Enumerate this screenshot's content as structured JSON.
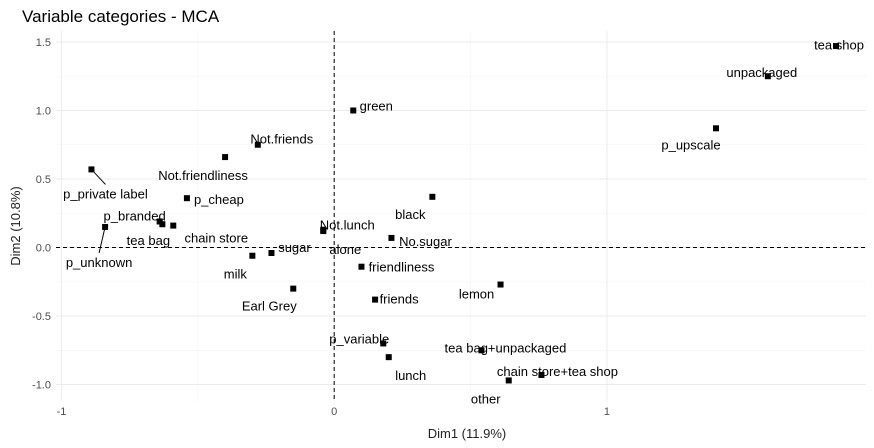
{
  "chart_data": {
    "type": "scatter",
    "title": "Variable categories - MCA",
    "xlabel": "Dim1 (11.9%)",
    "ylabel": "Dim2 (10.8%)",
    "xlim": [
      -1.02,
      1.95
    ],
    "ylim": [
      -1.12,
      1.58
    ],
    "xticks": [
      -1,
      0,
      1
    ],
    "yticks": [
      -1.0,
      -0.5,
      0.0,
      0.5,
      1.0,
      1.5
    ],
    "ytick_labels": [
      "-1.0",
      "-0.5",
      "0.0",
      "0.5",
      "1.0",
      "1.5"
    ],
    "xtick_labels": [
      "-1",
      "0",
      "1"
    ],
    "grid": true,
    "reference_lines": {
      "x": 0,
      "y": 0,
      "style": "dashed"
    },
    "points": [
      {
        "label": "tea shop",
        "x": 1.84,
        "y": 1.47
      },
      {
        "label": "unpackaged",
        "x": 1.59,
        "y": 1.25
      },
      {
        "label": "p_upscale",
        "x": 1.4,
        "y": 0.87
      },
      {
        "label": "green",
        "x": 0.07,
        "y": 1.0
      },
      {
        "label": "Not.friends",
        "x": -0.28,
        "y": 0.75
      },
      {
        "label": "Not.friendliness",
        "x": -0.4,
        "y": 0.66
      },
      {
        "label": "p_private label",
        "x": -0.89,
        "y": 0.57
      },
      {
        "label": "p_cheap",
        "x": -0.54,
        "y": 0.36
      },
      {
        "label": "black",
        "x": 0.36,
        "y": 0.37
      },
      {
        "label": "p_branded",
        "x": -0.64,
        "y": 0.19
      },
      {
        "label": "chain store",
        "x": -0.59,
        "y": 0.16
      },
      {
        "label": "tea bag",
        "x": -0.63,
        "y": 0.17
      },
      {
        "label": "p_unknown",
        "x": -0.84,
        "y": 0.15
      },
      {
        "label": "Not.lunch",
        "x": -0.04,
        "y": 0.13
      },
      {
        "label": "alone",
        "x": -0.04,
        "y": 0.12
      },
      {
        "label": "No.sugar",
        "x": 0.21,
        "y": 0.07
      },
      {
        "label": "sugar",
        "x": -0.23,
        "y": -0.04
      },
      {
        "label": "milk",
        "x": -0.3,
        "y": -0.06
      },
      {
        "label": "friendliness",
        "x": 0.1,
        "y": -0.14
      },
      {
        "label": "Earl Grey",
        "x": -0.15,
        "y": -0.3
      },
      {
        "label": "lemon",
        "x": 0.61,
        "y": -0.27
      },
      {
        "label": "friends",
        "x": 0.15,
        "y": -0.38
      },
      {
        "label": "p_variable",
        "x": 0.18,
        "y": -0.7
      },
      {
        "label": "lunch",
        "x": 0.2,
        "y": -0.8
      },
      {
        "label": "tea bag+unpackaged",
        "x": 0.54,
        "y": -0.75
      },
      {
        "label": "chain store+tea shop",
        "x": 0.76,
        "y": -0.93
      },
      {
        "label": "other",
        "x": 0.64,
        "y": -0.97
      }
    ]
  }
}
